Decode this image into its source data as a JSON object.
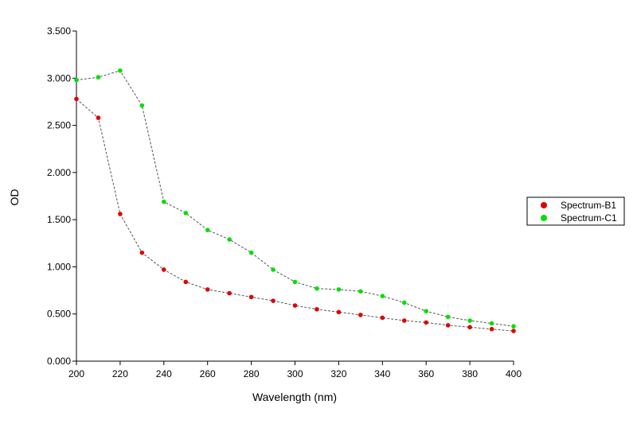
{
  "chart_data": {
    "type": "line",
    "xlabel": "Wavelength (nm)",
    "ylabel": "OD",
    "xlim": [
      200,
      400
    ],
    "ylim": [
      0,
      3.5
    ],
    "xticks": [
      "200",
      "220",
      "240",
      "260",
      "280",
      "300",
      "320",
      "340",
      "360",
      "380",
      "400"
    ],
    "yticks": [
      "0.000",
      "0.500",
      "1.000",
      "1.500",
      "2.000",
      "2.500",
      "3.000",
      "3.500"
    ],
    "x": [
      200,
      210,
      220,
      230,
      240,
      250,
      260,
      270,
      280,
      290,
      300,
      310,
      320,
      330,
      340,
      350,
      360,
      370,
      380,
      390,
      400
    ],
    "series": [
      {
        "name": "Spectrum-B1",
        "color": "#e00000",
        "values": [
          2.78,
          2.58,
          1.56,
          1.15,
          0.97,
          0.84,
          0.76,
          0.72,
          0.68,
          0.64,
          0.59,
          0.55,
          0.52,
          0.49,
          0.46,
          0.43,
          0.41,
          0.38,
          0.36,
          0.34,
          0.32
        ]
      },
      {
        "name": "Spectrum-C1",
        "color": "#00e000",
        "values": [
          2.98,
          3.01,
          3.08,
          2.71,
          1.69,
          1.57,
          1.39,
          1.29,
          1.15,
          0.97,
          0.84,
          0.77,
          0.76,
          0.74,
          0.69,
          0.62,
          0.53,
          0.47,
          0.43,
          0.4,
          0.37
        ]
      }
    ],
    "line_style": "dashed",
    "line_color": "#555555",
    "grid": false,
    "legend_position": "right"
  }
}
